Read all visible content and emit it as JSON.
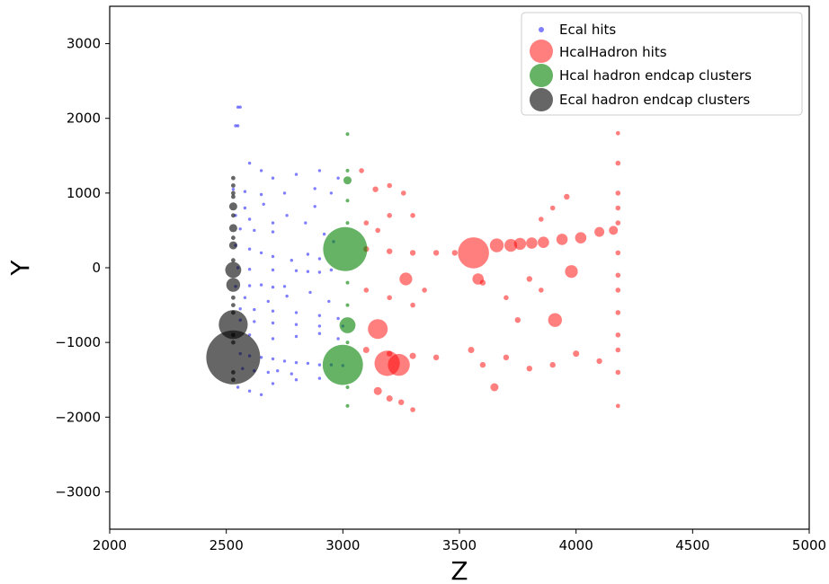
{
  "chart_data": {
    "type": "scatter",
    "title": "",
    "xlabel": "Z",
    "ylabel": "Y",
    "xlim": [
      2000,
      5000
    ],
    "ylim": [
      -3500,
      3500
    ],
    "xticks": [
      2000,
      2500,
      3000,
      3500,
      4000,
      4500,
      5000
    ],
    "yticks": [
      -3000,
      -2000,
      -1000,
      0,
      1000,
      2000,
      3000
    ],
    "grid": false,
    "legend_position": "upper-right",
    "series": [
      {
        "name": "Ecal hits",
        "color": "#0000ff",
        "alpha": 0.5,
        "points": [
          [
            2530,
            1050
          ],
          [
            2580,
            1020
          ],
          [
            2650,
            980
          ],
          [
            2750,
            1000
          ],
          [
            2880,
            1060
          ],
          [
            2880,
            820
          ],
          [
            2540,
            700
          ],
          [
            2600,
            650
          ],
          [
            2700,
            600
          ],
          [
            2560,
            520
          ],
          [
            2620,
            500
          ],
          [
            2700,
            480
          ],
          [
            2540,
            300
          ],
          [
            2600,
            250
          ],
          [
            2650,
            200
          ],
          [
            2700,
            150
          ],
          [
            2780,
            100
          ],
          [
            2850,
            180
          ],
          [
            2900,
            120
          ],
          [
            2550,
            0
          ],
          [
            2600,
            -20
          ],
          [
            2700,
            -30
          ],
          [
            2800,
            -40
          ],
          [
            2850,
            -50
          ],
          [
            2900,
            -60
          ],
          [
            2950,
            -30
          ],
          [
            2540,
            -250
          ],
          [
            2600,
            -240
          ],
          [
            2650,
            -230
          ],
          [
            2700,
            -260
          ],
          [
            2750,
            -250
          ],
          [
            2560,
            -550
          ],
          [
            2620,
            -560
          ],
          [
            2700,
            -580
          ],
          [
            2800,
            -600
          ],
          [
            2900,
            -640
          ],
          [
            2980,
            -680
          ],
          [
            2560,
            -700
          ],
          [
            2620,
            -720
          ],
          [
            2700,
            -740
          ],
          [
            2800,
            -760
          ],
          [
            2900,
            -780
          ],
          [
            3000,
            -780
          ],
          [
            2560,
            -1150
          ],
          [
            2600,
            -1180
          ],
          [
            2650,
            -1200
          ],
          [
            2700,
            -1220
          ],
          [
            2750,
            -1250
          ],
          [
            2800,
            -1270
          ],
          [
            2850,
            -1280
          ],
          [
            2900,
            -1300
          ],
          [
            2950,
            -1300
          ],
          [
            3000,
            -1310
          ],
          [
            2570,
            -1350
          ],
          [
            2620,
            -1380
          ],
          [
            2680,
            -1400
          ],
          [
            2720,
            -1380
          ],
          [
            2780,
            -1420
          ],
          [
            2550,
            2150
          ],
          [
            2560,
            2150
          ],
          [
            2540,
            1900
          ],
          [
            2550,
            1900
          ],
          [
            2600,
            1400
          ],
          [
            2650,
            1300
          ],
          [
            2700,
            1200
          ],
          [
            2800,
            1250
          ],
          [
            2900,
            1300
          ],
          [
            2950,
            1000
          ],
          [
            2980,
            1200
          ],
          [
            2580,
            800
          ],
          [
            2660,
            850
          ],
          [
            2760,
            700
          ],
          [
            2840,
            600
          ],
          [
            2920,
            450
          ],
          [
            2960,
            350
          ],
          [
            2580,
            -400
          ],
          [
            2680,
            -450
          ],
          [
            2760,
            -380
          ],
          [
            2860,
            -330
          ],
          [
            2940,
            -450
          ],
          [
            2600,
            -900
          ],
          [
            2700,
            -950
          ],
          [
            2800,
            -920
          ],
          [
            2900,
            -880
          ],
          [
            2980,
            -950
          ],
          [
            2550,
            -1600
          ],
          [
            2600,
            -1650
          ],
          [
            2650,
            -1700
          ],
          [
            2700,
            -1550
          ],
          [
            2800,
            -1500
          ],
          [
            2900,
            -1480
          ]
        ]
      },
      {
        "name": "HcalHadron hits",
        "color": "#ff0000",
        "alpha": 0.5,
        "points": [
          [
            3560,
            200,
            300
          ],
          [
            3150,
            -820,
            120
          ],
          [
            3190,
            -1280,
            200
          ],
          [
            3240,
            -1300,
            150
          ],
          [
            3270,
            -150,
            50
          ],
          [
            3580,
            -150,
            40
          ],
          [
            3910,
            -700,
            60
          ],
          [
            3980,
            -50,
            50
          ],
          [
            3660,
            300,
            60
          ],
          [
            3720,
            300,
            50
          ],
          [
            3760,
            320,
            45
          ],
          [
            3810,
            330,
            40
          ],
          [
            3860,
            340,
            40
          ],
          [
            3940,
            380,
            40
          ],
          [
            4020,
            400,
            40
          ],
          [
            4100,
            480,
            30
          ],
          [
            4160,
            500,
            25
          ],
          [
            3140,
            1050,
            10
          ],
          [
            3200,
            1100,
            8
          ],
          [
            3080,
            1300,
            8
          ],
          [
            3260,
            1000,
            8
          ],
          [
            3100,
            600,
            8
          ],
          [
            3200,
            700,
            8
          ],
          [
            3300,
            700,
            8
          ],
          [
            3150,
            500,
            8
          ],
          [
            3100,
            250,
            10
          ],
          [
            3200,
            220,
            10
          ],
          [
            3300,
            200,
            10
          ],
          [
            3400,
            200,
            10
          ],
          [
            3480,
            200,
            10
          ],
          [
            3100,
            -300,
            8
          ],
          [
            3200,
            -400,
            8
          ],
          [
            3300,
            -500,
            8
          ],
          [
            3350,
            -300,
            8
          ],
          [
            3100,
            -1100,
            12
          ],
          [
            3200,
            -1150,
            10
          ],
          [
            3300,
            -1180,
            12
          ],
          [
            3400,
            -1200,
            10
          ],
          [
            3150,
            -1650,
            20
          ],
          [
            3200,
            -1750,
            12
          ],
          [
            3250,
            -1800,
            10
          ],
          [
            3300,
            -1900,
            8
          ],
          [
            3550,
            -1100,
            12
          ],
          [
            3600,
            -1300,
            10
          ],
          [
            3650,
            -1600,
            20
          ],
          [
            3700,
            -1200,
            10
          ],
          [
            3800,
            -1350,
            10
          ],
          [
            3900,
            -1300,
            10
          ],
          [
            4000,
            -1150,
            12
          ],
          [
            4100,
            -1250,
            10
          ],
          [
            4180,
            1800,
            6
          ],
          [
            4180,
            1400,
            8
          ],
          [
            4180,
            1000,
            8
          ],
          [
            4180,
            800,
            8
          ],
          [
            4180,
            600,
            8
          ],
          [
            4180,
            200,
            8
          ],
          [
            4180,
            -100,
            8
          ],
          [
            4180,
            -300,
            8
          ],
          [
            4180,
            -600,
            8
          ],
          [
            4180,
            -900,
            8
          ],
          [
            4180,
            -1100,
            8
          ],
          [
            4180,
            -1400,
            8
          ],
          [
            4180,
            -1850,
            6
          ],
          [
            3960,
            950,
            10
          ],
          [
            3900,
            800,
            8
          ],
          [
            3850,
            650,
            8
          ],
          [
            3600,
            -200,
            10
          ],
          [
            3700,
            -400,
            8
          ],
          [
            3800,
            -150,
            10
          ],
          [
            3850,
            -300,
            8
          ],
          [
            3750,
            -700,
            10
          ]
        ]
      },
      {
        "name": "Hcal hadron endcap clusters",
        "color": "#008000",
        "alpha": 0.6,
        "points": [
          [
            3010,
            250,
            600
          ],
          [
            3000,
            -1300,
            500
          ],
          [
            3020,
            -770,
            80
          ],
          [
            3020,
            1170,
            20
          ],
          [
            3020,
            1790,
            4
          ],
          [
            3020,
            1300,
            4
          ],
          [
            3020,
            900,
            4
          ],
          [
            3020,
            600,
            4
          ],
          [
            3020,
            -200,
            4
          ],
          [
            3020,
            -500,
            4
          ],
          [
            3020,
            -1000,
            4
          ],
          [
            3020,
            -1600,
            4
          ],
          [
            3020,
            -1850,
            4
          ]
        ]
      },
      {
        "name": "Ecal hadron endcap clusters",
        "color": "#000000",
        "alpha": 0.6,
        "points": [
          [
            2530,
            -1200,
            900
          ],
          [
            2530,
            -760,
            260
          ],
          [
            2530,
            -30,
            80
          ],
          [
            2530,
            -230,
            60
          ],
          [
            2530,
            820,
            20
          ],
          [
            2530,
            530,
            20
          ],
          [
            2530,
            300,
            20
          ],
          [
            2530,
            1200,
            6
          ],
          [
            2530,
            1100,
            6
          ],
          [
            2530,
            1000,
            6
          ],
          [
            2530,
            950,
            6
          ],
          [
            2530,
            700,
            6
          ],
          [
            2530,
            400,
            6
          ],
          [
            2530,
            100,
            6
          ],
          [
            2530,
            -400,
            6
          ],
          [
            2530,
            -500,
            6
          ],
          [
            2530,
            -600,
            6
          ],
          [
            2530,
            -900,
            6
          ],
          [
            2530,
            -1000,
            6
          ],
          [
            2530,
            -1400,
            6
          ],
          [
            2530,
            -1500,
            6
          ]
        ]
      }
    ]
  }
}
